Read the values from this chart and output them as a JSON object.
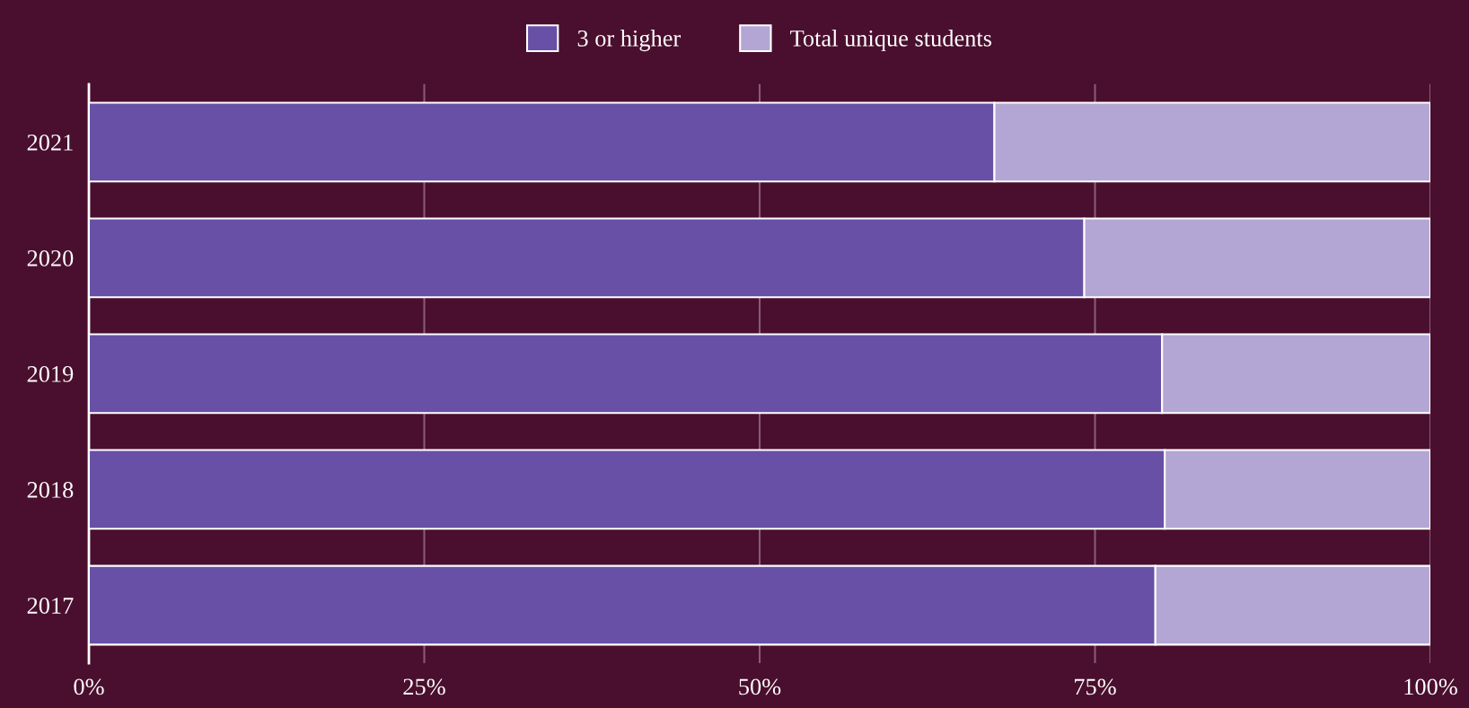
{
  "chart_data": {
    "type": "bar",
    "orientation": "horizontal",
    "stacked": true,
    "categories": [
      "2021",
      "2020",
      "2019",
      "2018",
      "2017"
    ],
    "series": [
      {
        "name": "3 or higher",
        "color": "#6750a6",
        "values": [
          67.5,
          74.2,
          80.0,
          80.2,
          79.5
        ]
      },
      {
        "name": "Total unique students",
        "color": "#b3a6d4",
        "values": [
          32.5,
          25.8,
          20.0,
          19.8,
          20.5
        ]
      }
    ],
    "xlim": [
      0,
      100
    ],
    "xticks": [
      {
        "value": 0,
        "label": "0%"
      },
      {
        "value": 25,
        "label": "25%"
      },
      {
        "value": 50,
        "label": "50%"
      },
      {
        "value": 75,
        "label": "75%"
      },
      {
        "value": 100,
        "label": "100%"
      }
    ],
    "grid": "x",
    "legend": "top"
  }
}
